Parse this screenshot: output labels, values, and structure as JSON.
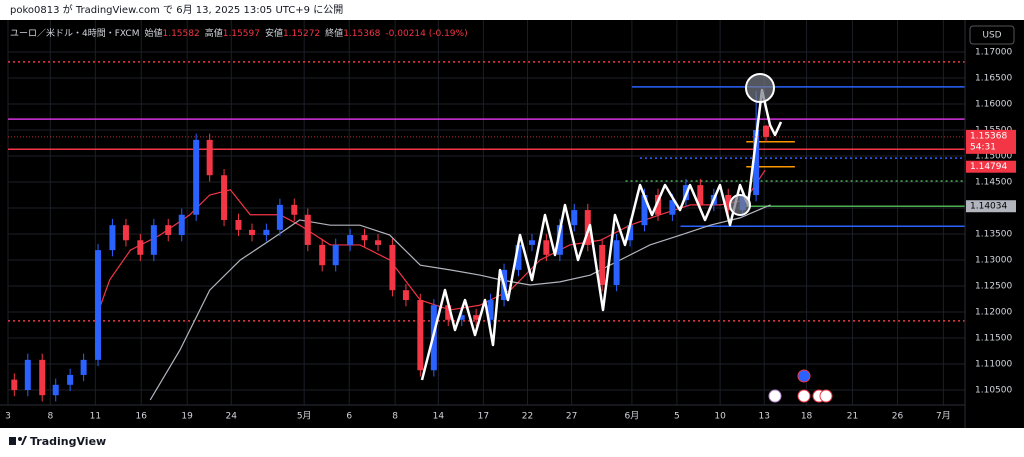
{
  "header": {
    "text": "poko0813 が TradingView.com で 6月 13, 2025 13:05 UTC+9 に公開"
  },
  "chart_data": {
    "type": "candlestick",
    "title": "ユーロ／米ドル・4時間・FXCM",
    "legend_labels": {
      "open": "始値",
      "high": "高値",
      "low": "安値",
      "close": "終値"
    },
    "change": "-0.00214 (-0.19%)",
    "currency": "USD",
    "countdown": "54:31",
    "up_color": "#2962ff",
    "down_color": "#f23645",
    "x": [
      0.7,
      2.2,
      3.8,
      5.3,
      6.9,
      8.4,
      10,
      11.6,
      13.1,
      14.7,
      16.2,
      17.8,
      19.3,
      20.9,
      22.4,
      24,
      25.6,
      27.1,
      28.7,
      30.2,
      31.8,
      33.3,
      34.9,
      36.4,
      38,
      39.6,
      41.1,
      42.7,
      44.2,
      45.8,
      47.3,
      48.9,
      50.4,
      52,
      53.6,
      55.1,
      56.7,
      58.2,
      59.8,
      61.3,
      62.9,
      64.4,
      66,
      67.6,
      69.1,
      70.7,
      72.2,
      73.8,
      75.3,
      76.9,
      78.4,
      80,
      81.6,
      83.1,
      84.2
    ],
    "open": [
      1.107,
      1.105,
      1.1108,
      1.104,
      1.106,
      1.1079,
      1.1108,
      1.1319,
      1.1367,
      1.1338,
      1.131,
      1.1367,
      1.1348,
      1.1387,
      1.1531,
      1.1463,
      1.1377,
      1.1358,
      1.1348,
      1.1358,
      1.1406,
      1.1387,
      1.1329,
      1.129,
      1.1329,
      1.1348,
      1.1338,
      1.1329,
      1.1242,
      1.1223,
      1.1088,
      1.1213,
      1.1185,
      1.1194,
      1.1185,
      1.1223,
      1.1281,
      1.1329,
      1.1338,
      1.131,
      1.1367,
      1.1396,
      1.1329,
      1.1252,
      1.1338,
      1.1367,
      1.1425,
      1.1387,
      1.1415,
      1.1444,
      1.1406,
      1.1425,
      1.1396,
      1.1425,
      1.15582
    ],
    "high": [
      1.1082,
      1.112,
      1.112,
      1.1072,
      1.1091,
      1.112,
      1.1331,
      1.1379,
      1.1379,
      1.135,
      1.1379,
      1.1379,
      1.1399,
      1.1543,
      1.1543,
      1.1475,
      1.1389,
      1.137,
      1.137,
      1.1418,
      1.1418,
      1.1399,
      1.1341,
      1.1341,
      1.136,
      1.136,
      1.135,
      1.1341,
      1.1254,
      1.1235,
      1.1225,
      1.1225,
      1.1206,
      1.1206,
      1.1235,
      1.1293,
      1.1341,
      1.135,
      1.135,
      1.1379,
      1.1408,
      1.1408,
      1.1341,
      1.135,
      1.1379,
      1.1437,
      1.1437,
      1.1427,
      1.1456,
      1.1456,
      1.1437,
      1.1437,
      1.1437,
      1.1625,
      1.15597
    ],
    "low": [
      1.1038,
      1.1038,
      1.1028,
      1.1028,
      1.1048,
      1.1067,
      1.1096,
      1.1307,
      1.1326,
      1.1298,
      1.1298,
      1.1336,
      1.1336,
      1.1375,
      1.1451,
      1.1365,
      1.1346,
      1.1336,
      1.1336,
      1.1346,
      1.1375,
      1.1317,
      1.1278,
      1.1278,
      1.1317,
      1.1326,
      1.1317,
      1.123,
      1.1211,
      1.1076,
      1.1076,
      1.1173,
      1.1173,
      1.1173,
      1.1173,
      1.1211,
      1.1269,
      1.1317,
      1.1298,
      1.1298,
      1.1355,
      1.1317,
      1.124,
      1.124,
      1.1326,
      1.1355,
      1.1375,
      1.1375,
      1.1403,
      1.1394,
      1.1394,
      1.1384,
      1.1384,
      1.1413,
      1.15272
    ],
    "close": [
      1.105,
      1.1108,
      1.104,
      1.106,
      1.1079,
      1.1108,
      1.1319,
      1.1367,
      1.1338,
      1.131,
      1.1367,
      1.1348,
      1.1387,
      1.1531,
      1.1463,
      1.1377,
      1.1358,
      1.1348,
      1.1358,
      1.1406,
      1.1387,
      1.1329,
      1.129,
      1.1329,
      1.1348,
      1.1338,
      1.1329,
      1.1242,
      1.1223,
      1.1088,
      1.1213,
      1.1185,
      1.1194,
      1.1185,
      1.1223,
      1.1281,
      1.1329,
      1.1338,
      1.131,
      1.1367,
      1.1396,
      1.1329,
      1.1252,
      1.1338,
      1.1367,
      1.1425,
      1.1387,
      1.1415,
      1.1444,
      1.1406,
      1.1425,
      1.1396,
      1.1425,
      1.155,
      1.15368
    ],
    "lines": [
      {
        "color": "#f23645",
        "x": [
          9.7,
          11.3,
          13.6,
          16.9,
          20.2,
          22.4,
          24.7,
          26.9,
          30.2,
          32.4,
          35.8,
          39.1,
          42.4,
          45.8,
          49.1,
          52.4,
          55.8,
          59.1,
          62.4,
          65.8,
          69.1,
          72.4,
          75.8,
          79.1,
          81.9,
          84.1
        ],
        "values": [
          1.1185,
          1.1262,
          1.1319,
          1.1348,
          1.1387,
          1.1425,
          1.1435,
          1.1387,
          1.1387,
          1.1367,
          1.1329,
          1.1329,
          1.13,
          1.1223,
          1.1204,
          1.1213,
          1.1242,
          1.13,
          1.1329,
          1.1338,
          1.1367,
          1.1387,
          1.1406,
          1.1406,
          1.1415,
          1.1473
        ]
      },
      {
        "color": "#b2b5be",
        "x": [
          15.8,
          19.1,
          22.4,
          25.8,
          29.1,
          32.4,
          35.8,
          39.1,
          42.4,
          45.8,
          49.1,
          52.4,
          54.7,
          58,
          61.3,
          64.7,
          68,
          71.3,
          74.7,
          78,
          81.3,
          84.7
        ],
        "values": [
          1.1031,
          1.1127,
          1.1242,
          1.13,
          1.1338,
          1.1377,
          1.1367,
          1.1367,
          1.1348,
          1.129,
          1.1281,
          1.1271,
          1.1262,
          1.1252,
          1.1258,
          1.1271,
          1.13,
          1.1329,
          1.1348,
          1.1367,
          1.1381,
          1.1406
        ]
      }
    ],
    "levels": [
      {
        "value": 1.1681,
        "color": "#f23645",
        "style": "dotted",
        "x0": 0
      },
      {
        "value": 1.1571,
        "color": "#d633e0",
        "style": "solid",
        "x0": 0
      },
      {
        "value": 1.1513,
        "color": "#f23645",
        "style": "solid",
        "x0": 0
      },
      {
        "value": 1.1183,
        "color": "#f23645",
        "style": "dotted",
        "x0": 0
      },
      {
        "value": 1.1633,
        "color": "#2962ff",
        "style": "solid",
        "x0": 69.3
      },
      {
        "value": 1.1496,
        "color": "#2962ff",
        "style": "dotted",
        "x0": 70.2
      },
      {
        "value": 1.1365,
        "color": "#2962ff",
        "style": "solid",
        "x0": 74.7
      },
      {
        "value": 1.1452,
        "color": "#4caf50",
        "style": "dotted",
        "x0": 68.6
      },
      {
        "value": 1.14034,
        "color": "#4caf50",
        "style": "solid",
        "x0": 81.3,
        "tag_color": "#b2b5be"
      },
      {
        "value": 1.15273,
        "color": "#ff9800",
        "style": "solid",
        "x0": 82,
        "x1": 87.4
      },
      {
        "value": 1.14794,
        "color": "#ff9800",
        "style": "solid",
        "x0": 82,
        "x1": 87.4,
        "tag_color": "#f23645"
      }
    ],
    "xlim": [
      0,
      106.3
    ],
    "ylim": [
      1.10212,
      1.17615
    ],
    "xticks": [
      {
        "value": 0,
        "label": "3"
      },
      {
        "value": 4.7,
        "label": "8"
      },
      {
        "value": 9.7,
        "label": "11"
      },
      {
        "value": 14.8,
        "label": "16"
      },
      {
        "value": 19.9,
        "label": "19"
      },
      {
        "value": 24.8,
        "label": "24"
      },
      {
        "value": 32.9,
        "label": "5月"
      },
      {
        "value": 37.9,
        "label": "6"
      },
      {
        "value": 43,
        "label": "8"
      },
      {
        "value": 47.8,
        "label": "14"
      },
      {
        "value": 52.8,
        "label": "17"
      },
      {
        "value": 57.7,
        "label": "22"
      },
      {
        "value": 62.6,
        "label": "27"
      },
      {
        "value": 69.3,
        "label": "6月"
      },
      {
        "value": 74.3,
        "label": "5"
      },
      {
        "value": 79.1,
        "label": "10"
      },
      {
        "value": 84,
        "label": "13"
      },
      {
        "value": 88.7,
        "label": "18"
      },
      {
        "value": 93.8,
        "label": "21"
      },
      {
        "value": 98.8,
        "label": "26"
      },
      {
        "value": 103.9,
        "label": "7月"
      }
    ],
    "yticks": [
      {
        "value": 1.105,
        "label": "1.10500"
      },
      {
        "value": 1.11,
        "label": "1.11000"
      },
      {
        "value": 1.115,
        "label": "1.11500"
      },
      {
        "value": 1.12,
        "label": "1.12000"
      },
      {
        "value": 1.125,
        "label": "1.12500"
      },
      {
        "value": 1.13,
        "label": "1.13000"
      },
      {
        "value": 1.135,
        "label": "1.13500"
      },
      {
        "value": 1.14,
        "label": "1.14000"
      },
      {
        "value": 1.145,
        "label": "1.14500"
      },
      {
        "value": 1.15,
        "label": "1.15000"
      },
      {
        "value": 1.155,
        "label": "1.15500"
      },
      {
        "value": 1.16,
        "label": "1.16000"
      },
      {
        "value": 1.165,
        "label": "1.16500"
      },
      {
        "value": 1.17,
        "label": "1.17000"
      }
    ],
    "grid": true
  },
  "footer": {
    "text": "TradingView"
  }
}
